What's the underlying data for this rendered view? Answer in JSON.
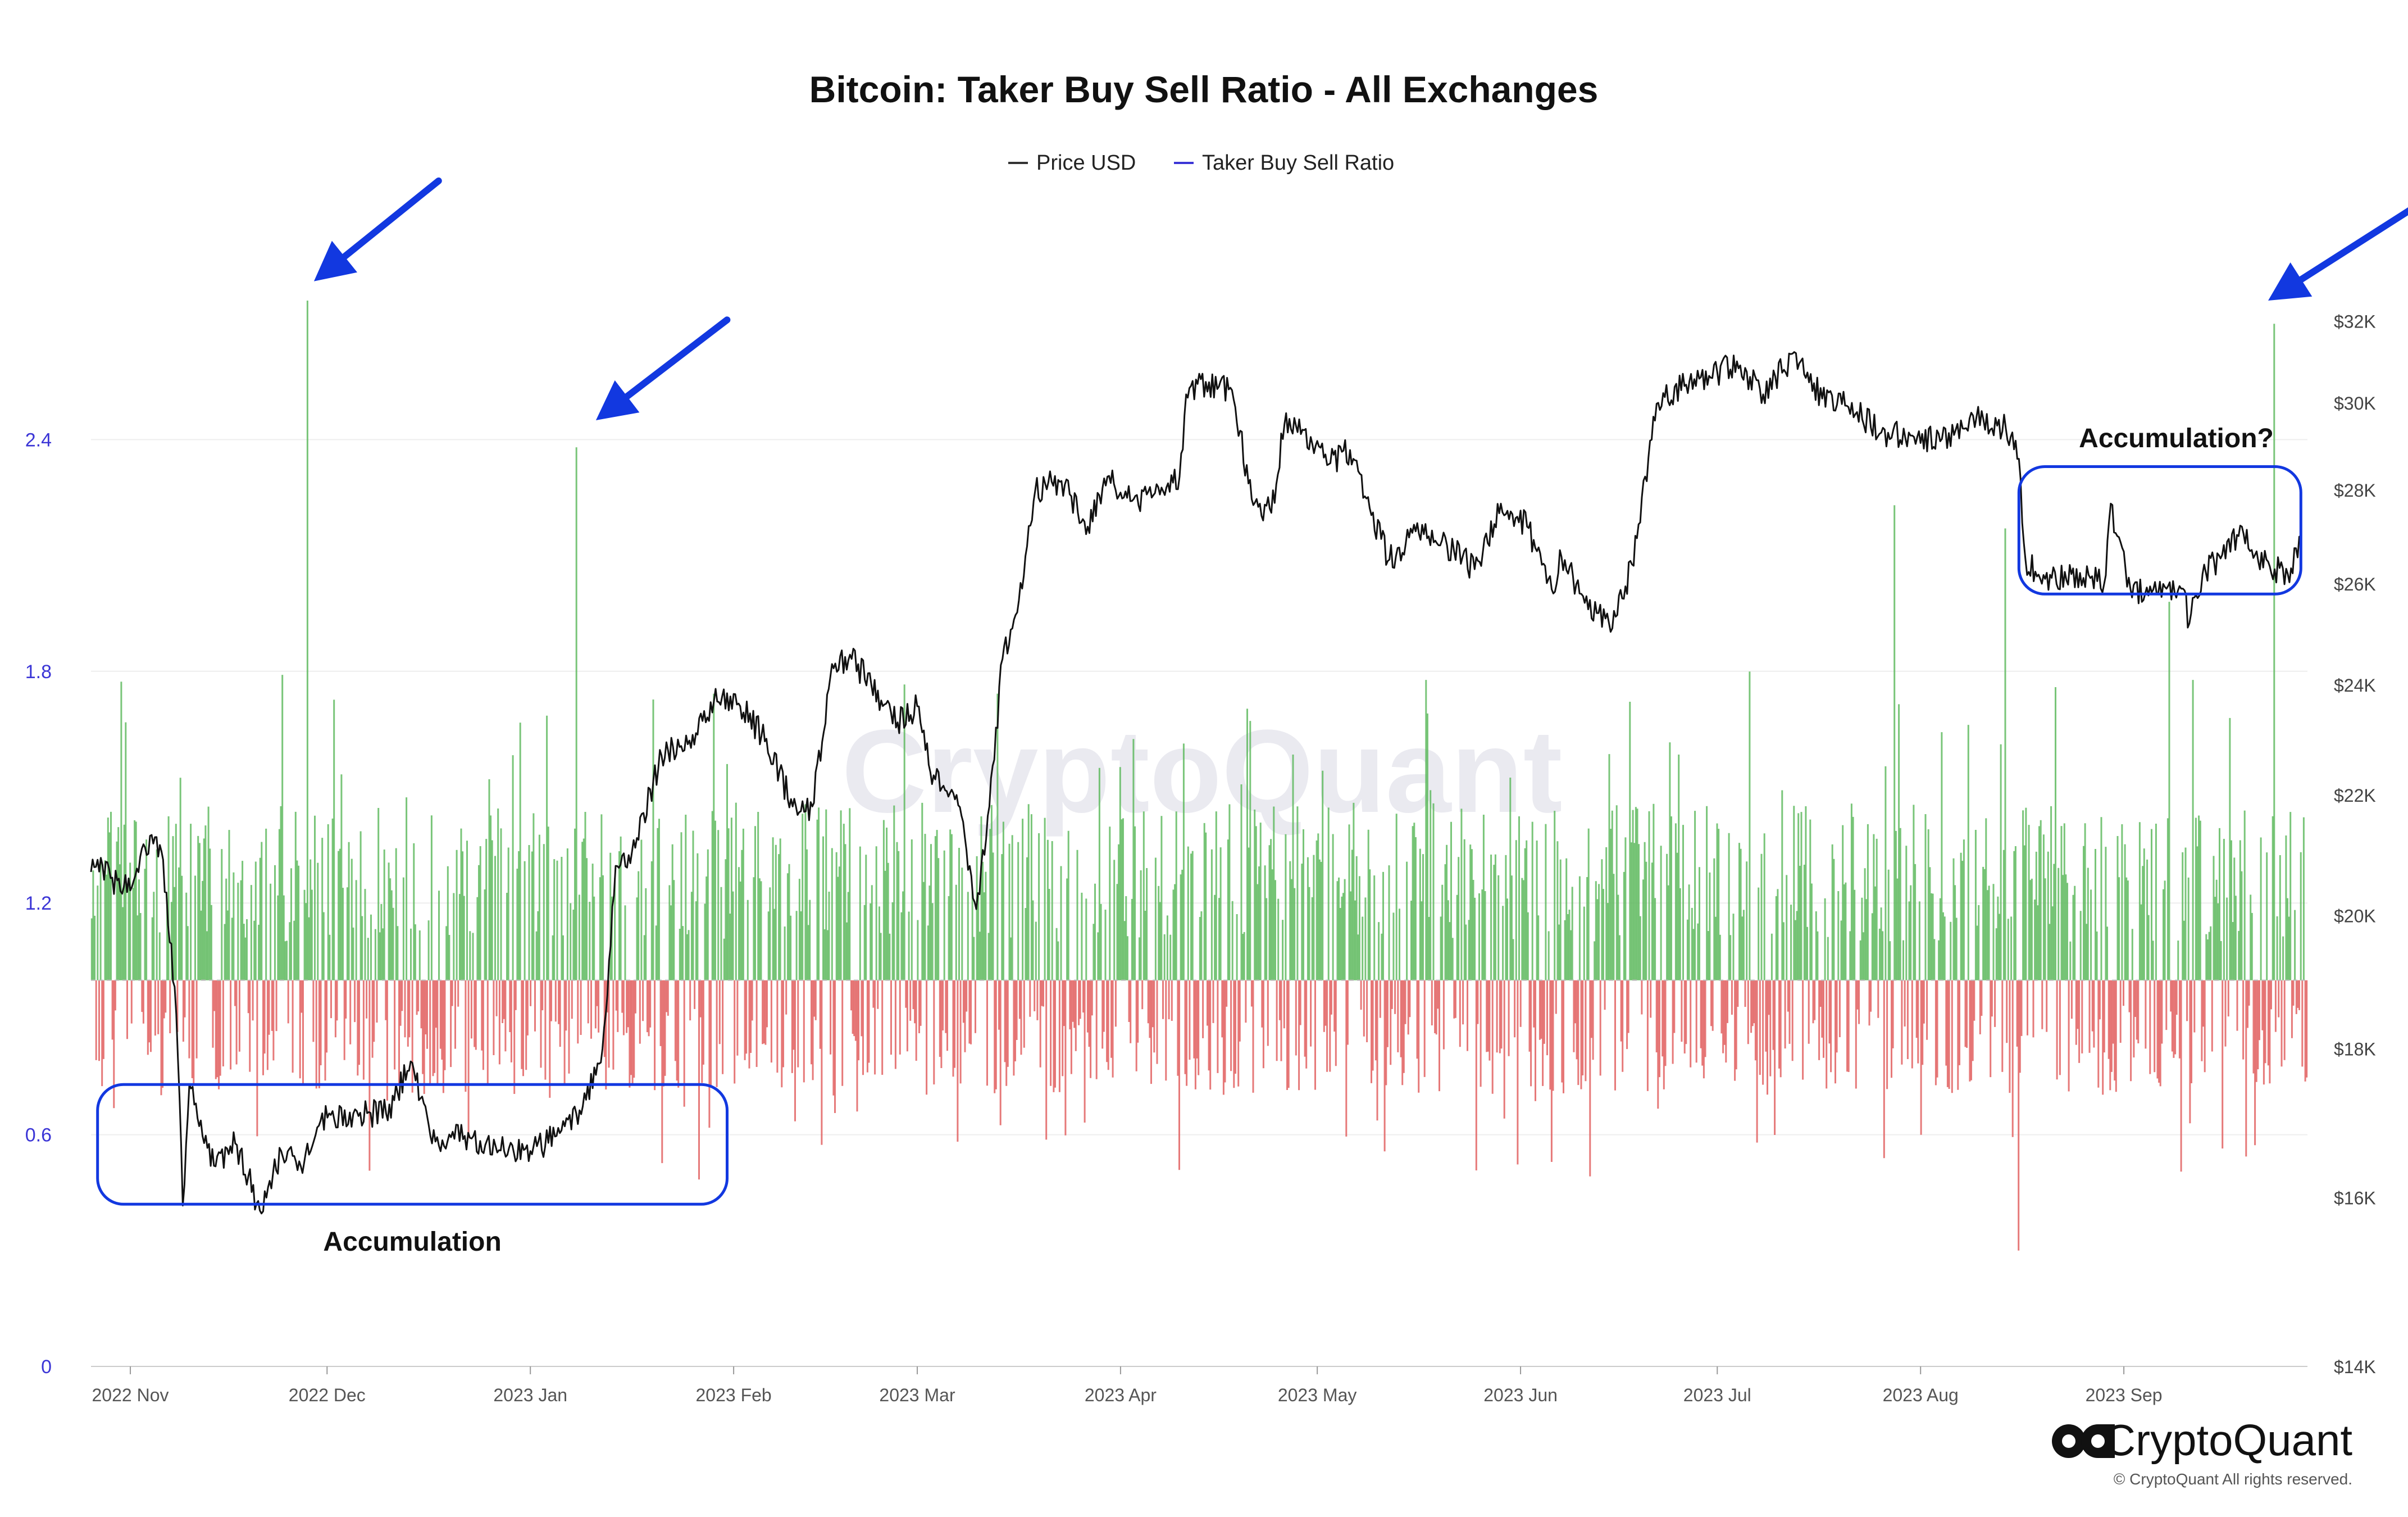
{
  "chart_data": {
    "type": "bar",
    "title": "Bitcoin: Taker Buy Sell Ratio - All Exchanges",
    "watermark": "CryptoQuant",
    "baseline": 1.0,
    "legend": {
      "placement": "top-center",
      "entries": [
        {
          "name": "Price USD",
          "color": "#333333"
        },
        {
          "name": "Taker Buy Sell Ratio",
          "color": "#3b35d6"
        }
      ]
    },
    "colors": {
      "above": "#5cb85c",
      "below": "#e05c5c",
      "price": "#111111",
      "annotation": "#1238e0",
      "left_axis": "#3b35d6",
      "right_axis": "#444444"
    },
    "x_axis": {
      "range": [
        "2022-10-26",
        "2023-09-29"
      ],
      "ticks": [
        {
          "date": "2022-11-01",
          "label": "2022 Nov"
        },
        {
          "date": "2022-12-01",
          "label": "2022 Dec"
        },
        {
          "date": "2023-01-01",
          "label": "2023 Jan"
        },
        {
          "date": "2023-02-01",
          "label": "2023 Feb"
        },
        {
          "date": "2023-03-01",
          "label": "2023 Mar"
        },
        {
          "date": "2023-04-01",
          "label": "2023 Apr"
        },
        {
          "date": "2023-05-01",
          "label": "2023 May"
        },
        {
          "date": "2023-06-01",
          "label": "2023 Jun"
        },
        {
          "date": "2023-07-01",
          "label": "2023 Jul"
        },
        {
          "date": "2023-08-01",
          "label": "2023 Aug"
        },
        {
          "date": "2023-09-01",
          "label": "2023 Sep"
        }
      ]
    },
    "y_left": {
      "range": [
        0,
        3.0
      ],
      "ticks": [
        0,
        0.6,
        1.2,
        1.8,
        2.4
      ],
      "labels": [
        "0",
        "0.6",
        "1.2",
        "1.8",
        "2.4"
      ]
    },
    "y_right": {
      "scale": "log",
      "range": [
        14000,
        35000
      ],
      "ticks": [
        14000,
        16000,
        18000,
        20000,
        22000,
        24000,
        26000,
        28000,
        30000,
        32000
      ],
      "labels": [
        "$14K",
        "$16K",
        "$18K",
        "$20K",
        "$22K",
        "$24K",
        "$26K",
        "$28K",
        "$30K",
        "$32K"
      ]
    },
    "spikes": [
      {
        "date": "2022-11-28",
        "value": 2.76
      },
      {
        "date": "2023-01-08",
        "value": 2.38
      },
      {
        "date": "2023-08-16",
        "value": 0.3
      },
      {
        "date": "2023-08-14",
        "value": 2.17
      },
      {
        "date": "2023-09-08",
        "value": 1.98
      },
      {
        "date": "2023-09-24",
        "value": 2.7
      },
      {
        "date": "2023-07-28",
        "value": 2.23
      }
    ],
    "price_series": [
      {
        "date": "2022-10-26",
        "value": 20700
      },
      {
        "date": "2022-10-27",
        "value": 20900
      },
      {
        "date": "2022-10-29",
        "value": 20600
      },
      {
        "date": "2022-11-01",
        "value": 20400
      },
      {
        "date": "2022-11-04",
        "value": 21300
      },
      {
        "date": "2022-11-06",
        "value": 20900
      },
      {
        "date": "2022-11-08",
        "value": 18500
      },
      {
        "date": "2022-11-09",
        "value": 15900
      },
      {
        "date": "2022-11-10",
        "value": 17500
      },
      {
        "date": "2022-11-12",
        "value": 16800
      },
      {
        "date": "2022-11-14",
        "value": 16400
      },
      {
        "date": "2022-11-17",
        "value": 16700
      },
      {
        "date": "2022-11-21",
        "value": 15800
      },
      {
        "date": "2022-11-24",
        "value": 16600
      },
      {
        "date": "2022-11-27",
        "value": 16400
      },
      {
        "date": "2022-11-30",
        "value": 17000
      },
      {
        "date": "2022-12-05",
        "value": 17100
      },
      {
        "date": "2022-12-10",
        "value": 17100
      },
      {
        "date": "2022-12-14",
        "value": 17800
      },
      {
        "date": "2022-12-17",
        "value": 16700
      },
      {
        "date": "2022-12-22",
        "value": 16800
      },
      {
        "date": "2022-12-28",
        "value": 16600
      },
      {
        "date": "2023-01-01",
        "value": 16600
      },
      {
        "date": "2023-01-05",
        "value": 16800
      },
      {
        "date": "2023-01-09",
        "value": 17200
      },
      {
        "date": "2023-01-12",
        "value": 18000
      },
      {
        "date": "2023-01-13",
        "value": 19300
      },
      {
        "date": "2023-01-14",
        "value": 20800
      },
      {
        "date": "2023-01-17",
        "value": 21100
      },
      {
        "date": "2023-01-21",
        "value": 22700
      },
      {
        "date": "2023-01-25",
        "value": 22900
      },
      {
        "date": "2023-01-29",
        "value": 23700
      },
      {
        "date": "2023-02-02",
        "value": 23600
      },
      {
        "date": "2023-02-06",
        "value": 23000
      },
      {
        "date": "2023-02-10",
        "value": 21800
      },
      {
        "date": "2023-02-13",
        "value": 21800
      },
      {
        "date": "2023-02-16",
        "value": 24400
      },
      {
        "date": "2023-02-19",
        "value": 24500
      },
      {
        "date": "2023-02-22",
        "value": 24000
      },
      {
        "date": "2023-02-26",
        "value": 23300
      },
      {
        "date": "2023-03-01",
        "value": 23600
      },
      {
        "date": "2023-03-03",
        "value": 22400
      },
      {
        "date": "2023-03-07",
        "value": 22000
      },
      {
        "date": "2023-03-10",
        "value": 20100
      },
      {
        "date": "2023-03-12",
        "value": 21800
      },
      {
        "date": "2023-03-14",
        "value": 24500
      },
      {
        "date": "2023-03-17",
        "value": 25900
      },
      {
        "date": "2023-03-19",
        "value": 28000
      },
      {
        "date": "2023-03-23",
        "value": 28200
      },
      {
        "date": "2023-03-27",
        "value": 27200
      },
      {
        "date": "2023-03-30",
        "value": 28300
      },
      {
        "date": "2023-04-03",
        "value": 27800
      },
      {
        "date": "2023-04-07",
        "value": 27900
      },
      {
        "date": "2023-04-10",
        "value": 28300
      },
      {
        "date": "2023-04-11",
        "value": 30200
      },
      {
        "date": "2023-04-14",
        "value": 30500
      },
      {
        "date": "2023-04-18",
        "value": 30300
      },
      {
        "date": "2023-04-21",
        "value": 27800
      },
      {
        "date": "2023-04-24",
        "value": 27500
      },
      {
        "date": "2023-04-26",
        "value": 29500
      },
      {
        "date": "2023-04-30",
        "value": 29200
      },
      {
        "date": "2023-05-03",
        "value": 28600
      },
      {
        "date": "2023-05-06",
        "value": 28900
      },
      {
        "date": "2023-05-09",
        "value": 27600
      },
      {
        "date": "2023-05-12",
        "value": 26500
      },
      {
        "date": "2023-05-16",
        "value": 27100
      },
      {
        "date": "2023-05-20",
        "value": 26900
      },
      {
        "date": "2023-05-25",
        "value": 26300
      },
      {
        "date": "2023-05-29",
        "value": 27700
      },
      {
        "date": "2023-06-02",
        "value": 27200
      },
      {
        "date": "2023-06-06",
        "value": 25800
      },
      {
        "date": "2023-06-07",
        "value": 26700
      },
      {
        "date": "2023-06-10",
        "value": 25800
      },
      {
        "date": "2023-06-15",
        "value": 25100
      },
      {
        "date": "2023-06-18",
        "value": 26400
      },
      {
        "date": "2023-06-20",
        "value": 28300
      },
      {
        "date": "2023-06-22",
        "value": 30000
      },
      {
        "date": "2023-06-26",
        "value": 30400
      },
      {
        "date": "2023-06-30",
        "value": 30600
      },
      {
        "date": "2023-07-04",
        "value": 31000
      },
      {
        "date": "2023-07-08",
        "value": 30200
      },
      {
        "date": "2023-07-13",
        "value": 31200
      },
      {
        "date": "2023-07-17",
        "value": 30100
      },
      {
        "date": "2023-07-21",
        "value": 29900
      },
      {
        "date": "2023-07-26",
        "value": 29300
      },
      {
        "date": "2023-07-31",
        "value": 29200
      },
      {
        "date": "2023-08-04",
        "value": 29100
      },
      {
        "date": "2023-08-09",
        "value": 29700
      },
      {
        "date": "2023-08-14",
        "value": 29400
      },
      {
        "date": "2023-08-16",
        "value": 28700
      },
      {
        "date": "2023-08-17",
        "value": 26500
      },
      {
        "date": "2023-08-20",
        "value": 26100
      },
      {
        "date": "2023-08-24",
        "value": 26200
      },
      {
        "date": "2023-08-29",
        "value": 26000
      },
      {
        "date": "2023-08-30",
        "value": 27700
      },
      {
        "date": "2023-08-31",
        "value": 27000
      },
      {
        "date": "2023-09-02",
        "value": 25900
      },
      {
        "date": "2023-09-06",
        "value": 25800
      },
      {
        "date": "2023-09-10",
        "value": 25900
      },
      {
        "date": "2023-09-11",
        "value": 25200
      },
      {
        "date": "2023-09-13",
        "value": 26200
      },
      {
        "date": "2023-09-16",
        "value": 26600
      },
      {
        "date": "2023-09-19",
        "value": 27200
      },
      {
        "date": "2023-09-21",
        "value": 26600
      },
      {
        "date": "2023-09-24",
        "value": 26300
      },
      {
        "date": "2023-09-26",
        "value": 26200
      },
      {
        "date": "2023-09-28",
        "value": 27000
      }
    ],
    "annotations": [
      {
        "id": "accumulation",
        "text": "Accumulation",
        "box": {
          "x0": "2022-10-27",
          "x1": "2023-01-31",
          "y0": 0.42,
          "y1": 0.73
        },
        "text_at": {
          "date": "2022-12-14",
          "value": 0.3
        }
      },
      {
        "id": "accumulation-q",
        "text": "Accumulation?",
        "box": {
          "x0": "2023-08-16",
          "x1": "2023-09-28",
          "y0": 2.0,
          "y1": 2.33
        },
        "text_at": {
          "date": "2023-09-09",
          "value": 2.38
        }
      }
    ],
    "arrows": [
      {
        "from": {
          "date": "2022-12-18",
          "value": 3.07
        },
        "to": {
          "date": "2022-11-29",
          "value": 2.81
        }
      },
      {
        "from": {
          "date": "2023-01-31",
          "value": 2.71
        },
        "to": {
          "date": "2023-01-11",
          "value": 2.45
        }
      },
      {
        "from": {
          "date": "2023-10-17",
          "value": 3.02
        },
        "to": {
          "date": "2023-09-23",
          "value": 2.76
        }
      }
    ]
  },
  "branding": {
    "logo": "CryptoQuant",
    "copyright": "© CryptoQuant All rights reserved."
  }
}
